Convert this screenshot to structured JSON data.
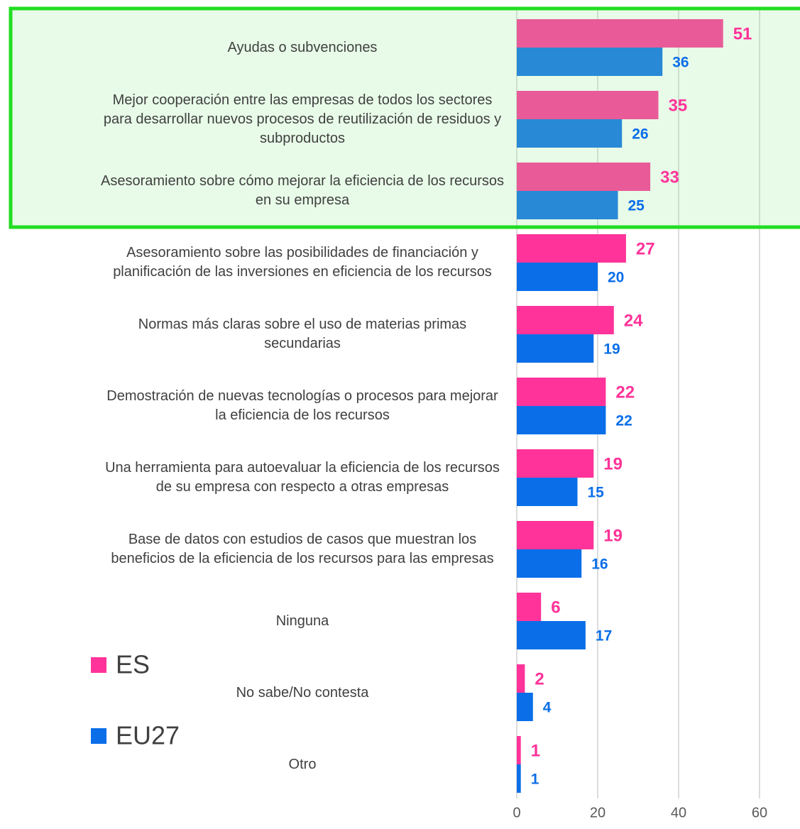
{
  "chart_data": {
    "type": "barh",
    "categories": [
      "Ayudas o subvenciones",
      "Mejor cooperación entre las empresas de todos los sectores para desarrollar nuevos procesos de reutilización de residuos y subproductos",
      "Asesoramiento sobre cómo mejorar la eficiencia de los recursos en su empresa",
      "Asesoramiento sobre las posibilidades de financiación y planificación de las inversiones en eficiencia de los recursos",
      "Normas más claras sobre el uso de materias primas secundarias",
      "Demostración de nuevas tecnologías o procesos para mejorar la eficiencia de los recursos",
      "Una herramienta para autoevaluar la eficiencia de los recursos de su empresa con respecto a otras empresas",
      "Base de datos con estudios de casos que muestran los beneficios de la eficiencia de los recursos para las empresas",
      "Ninguna",
      "No sabe/No contesta",
      "Otro"
    ],
    "series": [
      {
        "name": "ES",
        "color": "#ff3399",
        "values": [
          51,
          35,
          33,
          27,
          24,
          22,
          19,
          19,
          6,
          2,
          1
        ]
      },
      {
        "name": "EU27",
        "color": "#0a6ee8",
        "values": [
          36,
          26,
          25,
          20,
          19,
          22,
          15,
          16,
          17,
          4,
          1
        ]
      }
    ],
    "xlim": [
      0,
      70
    ],
    "xticks": [
      0,
      20,
      40,
      60
    ],
    "grid": true,
    "legend": "left"
  }
}
